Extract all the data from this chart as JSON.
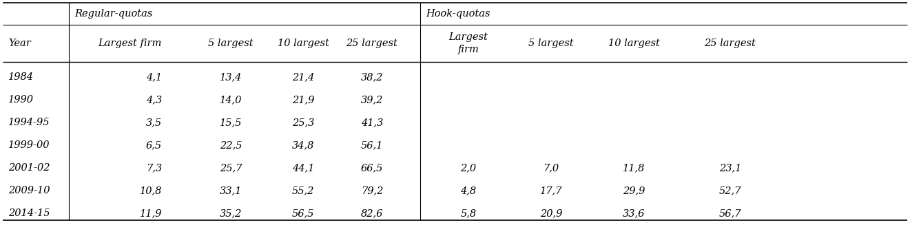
{
  "rows": [
    {
      "year": "1984",
      "rq_largest": "4,1",
      "rq_5": "13,4",
      "rq_10": "21,4",
      "rq_25": "38,2",
      "hq_largest": "",
      "hq_5": "",
      "hq_10": "",
      "hq_25": ""
    },
    {
      "year": "1990",
      "rq_largest": "4,3",
      "rq_5": "14,0",
      "rq_10": "21,9",
      "rq_25": "39,2",
      "hq_largest": "",
      "hq_5": "",
      "hq_10": "",
      "hq_25": ""
    },
    {
      "year": "1994-95",
      "rq_largest": "3,5",
      "rq_5": "15,5",
      "rq_10": "25,3",
      "rq_25": "41,3",
      "hq_largest": "",
      "hq_5": "",
      "hq_10": "",
      "hq_25": ""
    },
    {
      "year": "1999-00",
      "rq_largest": "6,5",
      "rq_5": "22,5",
      "rq_10": "34,8",
      "rq_25": "56,1",
      "hq_largest": "",
      "hq_5": "",
      "hq_10": "",
      "hq_25": ""
    },
    {
      "year": "2001-02",
      "rq_largest": "7,3",
      "rq_5": "25,7",
      "rq_10": "44,1",
      "rq_25": "66,5",
      "hq_largest": "2,0",
      "hq_5": "7,0",
      "hq_10": "11,8",
      "hq_25": "23,1"
    },
    {
      "year": "2009-10",
      "rq_largest": "10,8",
      "rq_5": "33,1",
      "rq_10": "55,2",
      "rq_25": "79,2",
      "hq_largest": "4,8",
      "hq_5": "17,7",
      "hq_10": "29,9",
      "hq_25": "52,7"
    },
    {
      "year": "2014-15",
      "rq_largest": "11,9",
      "rq_5": "35,2",
      "rq_10": "56,5",
      "rq_25": "82,6",
      "hq_largest": "5,8",
      "hq_5": "20,9",
      "hq_10": "33,6",
      "hq_25": "56,7"
    }
  ],
  "header1_rq": "Regular-quotas",
  "header1_hq": "Hook-quotas",
  "header2_year": "Year",
  "header2_rq_largest": "Largest firm",
  "header2_rq_5": "5 largest",
  "header2_rq_10": "10 largest",
  "header2_rq_25": "25 largest",
  "header2_hq_largest_line1": "Largest",
  "header2_hq_largest_line2": "firm",
  "header2_hq_5": "5 largest",
  "header2_hq_10": "10 largest",
  "header2_hq_25": "25 largest",
  "bg_color": "#ffffff",
  "text_color": "#000000",
  "line_color": "#000000",
  "font_size": 10.5
}
